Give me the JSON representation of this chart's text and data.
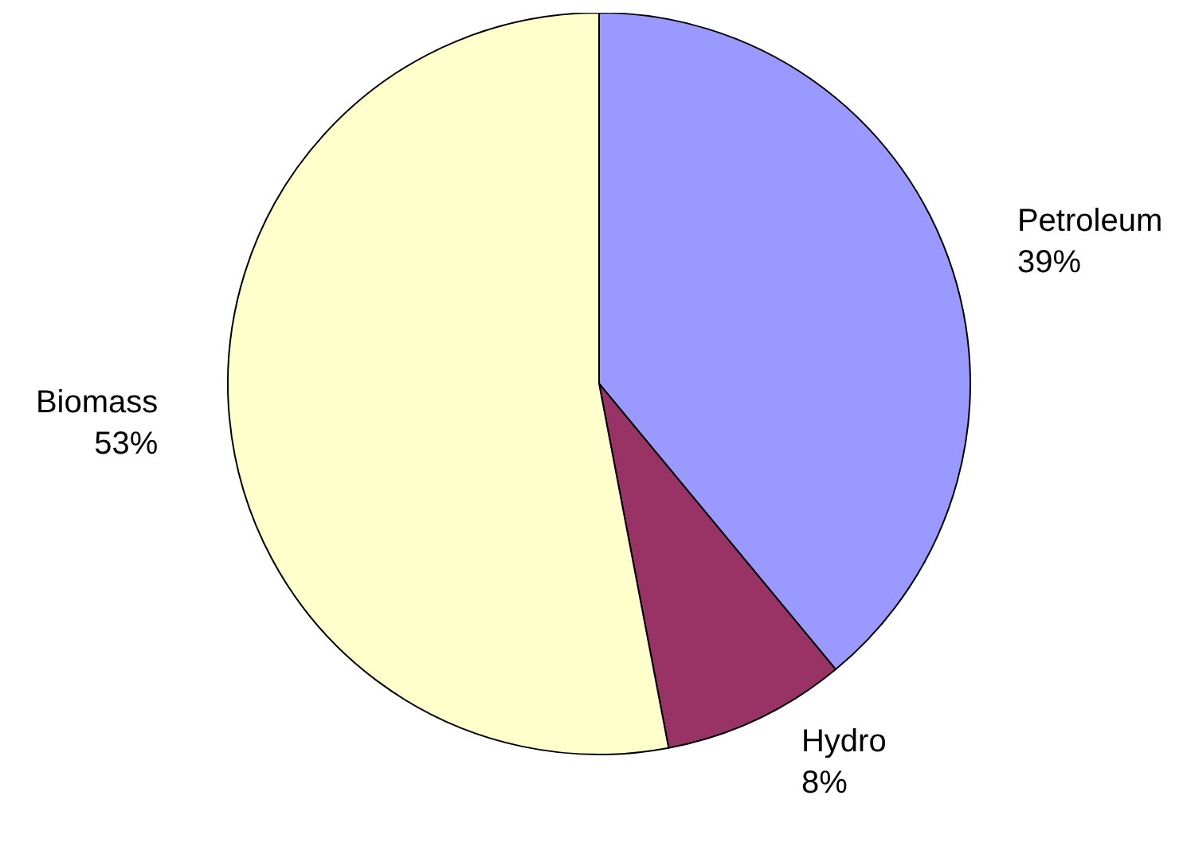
{
  "chart_data": {
    "type": "pie",
    "categories": [
      "Petroleum",
      "Hydro",
      "Biomass"
    ],
    "values": [
      39,
      8,
      53
    ],
    "colors": [
      "#9999ff",
      "#993366",
      "#ffffcc"
    ],
    "value_labels": [
      "39%",
      "8%",
      "53%"
    ],
    "legend": false
  }
}
